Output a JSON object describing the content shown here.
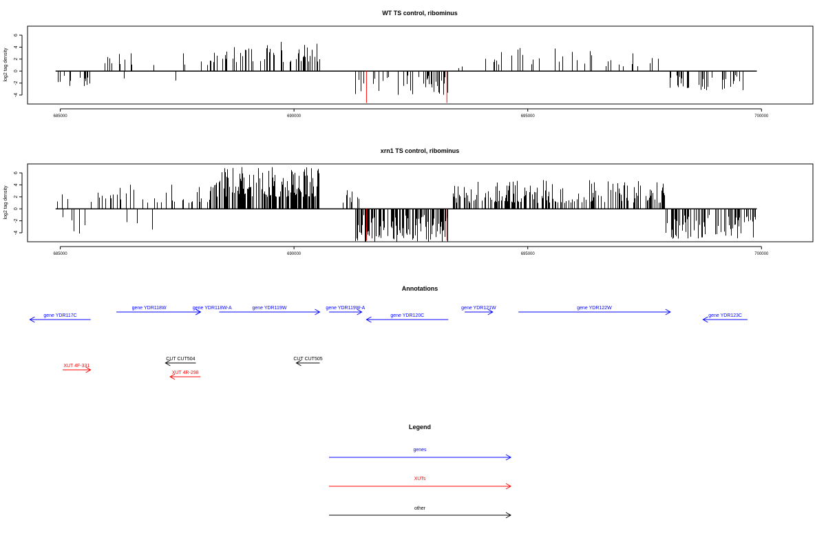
{
  "panels": [
    {
      "title": "WT TS control, ribominus",
      "ylabel": "log2 tag density",
      "yticks": [
        -4,
        -2,
        0,
        2,
        4,
        6
      ],
      "ylim": [
        -5.5,
        7.5
      ],
      "xlim": [
        684300,
        701100
      ],
      "xticks": [
        685000,
        690000,
        695000,
        700000
      ],
      "xticklabels": [
        "685000",
        "690000",
        "695000",
        "700000"
      ],
      "baseline": [
        684900,
        699900
      ],
      "red_marks": [
        {
          "x": 691550,
          "y": -5.3
        },
        {
          "x": 693270,
          "y": -5.3
        }
      ],
      "segments": [
        {
          "start": 684930,
          "end": 685650,
          "density": 0.25,
          "lo": 0,
          "hi": 0,
          "nlo": -2.5,
          "nhi": -0.5,
          "pneg": 1
        },
        {
          "start": 685650,
          "end": 688200,
          "density": 0.09,
          "lo": 1,
          "hi": 3,
          "nlo": -2,
          "nhi": -1,
          "pneg": 0.05
        },
        {
          "start": 688200,
          "end": 690550,
          "density": 0.32,
          "lo": 1.5,
          "hi": 5,
          "nlo": 0,
          "nhi": 0,
          "pneg": 0
        },
        {
          "start": 691100,
          "end": 691250,
          "density": 0.05,
          "lo": 0.5,
          "hi": 1.5,
          "nlo": 0,
          "nhi": 0,
          "pneg": 0
        },
        {
          "start": 691300,
          "end": 693300,
          "density": 0.22,
          "lo": 0,
          "hi": 0,
          "nlo": -4,
          "nhi": -0.5,
          "pneg": 1
        },
        {
          "start": 693500,
          "end": 697900,
          "density": 0.1,
          "lo": 0.5,
          "hi": 4,
          "nlo": 0,
          "nhi": 0,
          "pneg": 0
        },
        {
          "start": 697900,
          "end": 699700,
          "density": 0.22,
          "lo": 0,
          "hi": 0,
          "nlo": -3.2,
          "nhi": -0.5,
          "pneg": 1
        }
      ]
    },
    {
      "title": "xrn1 TS control, ribominus",
      "ylabel": "log2 tag density",
      "yticks": [
        -4,
        -2,
        0,
        2,
        4,
        6
      ],
      "ylim": [
        -5.5,
        7.5
      ],
      "xlim": [
        684300,
        701100
      ],
      "xticks": [
        685000,
        690000,
        695000,
        700000
      ],
      "xticklabels": [
        "685000",
        "690000",
        "695000",
        "700000"
      ],
      "baseline": [
        684900,
        699900
      ],
      "red_marks": [
        {
          "x": 691550,
          "y": -5.3
        },
        {
          "x": 693270,
          "y": -5.3
        }
      ],
      "segments": [
        {
          "start": 684930,
          "end": 685650,
          "density": 0.3,
          "lo": 1,
          "hi": 2.5,
          "nlo": -4.5,
          "nhi": -0.5,
          "pneg": 0.6
        },
        {
          "start": 685650,
          "end": 688200,
          "density": 0.28,
          "lo": 1,
          "hi": 4.2,
          "nlo": -3.5,
          "nhi": -1,
          "pneg": 0.06
        },
        {
          "start": 688200,
          "end": 690550,
          "density": 0.7,
          "lo": 2,
          "hi": 7,
          "nlo": 0,
          "nhi": 0,
          "pneg": 0
        },
        {
          "start": 691000,
          "end": 691400,
          "density": 0.2,
          "lo": 1,
          "hi": 3.5,
          "nlo": 0,
          "nhi": 0,
          "pneg": 0
        },
        {
          "start": 691300,
          "end": 693300,
          "density": 0.6,
          "lo": 0,
          "hi": 0,
          "nlo": -5.5,
          "nhi": -1,
          "pneg": 1
        },
        {
          "start": 693350,
          "end": 697950,
          "density": 0.45,
          "lo": 1,
          "hi": 4.8,
          "nlo": 0,
          "nhi": 0,
          "pneg": 0
        },
        {
          "start": 697950,
          "end": 699900,
          "density": 0.5,
          "lo": 0,
          "hi": 0,
          "nlo": -5,
          "nhi": -1,
          "pneg": 0.85
        }
      ]
    }
  ],
  "annotations": {
    "title": "Annotations",
    "xlim": [
      684300,
      701100
    ],
    "features": [
      {
        "label": "gene YDR117C",
        "start": 684350,
        "end": 685650,
        "strand": "-",
        "row": 2,
        "color": "#0000ff"
      },
      {
        "label": "gene YDR118W",
        "start": 686200,
        "end": 688000,
        "strand": "+",
        "row": 1,
        "color": "#0000ff"
      },
      {
        "label": "gene YDR118W-A",
        "start": 687900,
        "end": 688000,
        "strand": "+",
        "row": 1,
        "color": "#0000ff"
      },
      {
        "label": "gene YDR119W",
        "start": 688400,
        "end": 690550,
        "strand": "+",
        "row": 1,
        "color": "#0000ff"
      },
      {
        "label": "gene YDR119W-A",
        "start": 690750,
        "end": 691450,
        "strand": "+",
        "row": 1,
        "color": "#0000ff"
      },
      {
        "label": "gene YDR120C",
        "start": 691550,
        "end": 693300,
        "strand": "-",
        "row": 2,
        "color": "#0000ff"
      },
      {
        "label": "gene YDR121W",
        "start": 693650,
        "end": 694250,
        "strand": "+",
        "row": 1,
        "color": "#0000ff"
      },
      {
        "label": "gene YDR122W",
        "start": 694800,
        "end": 698050,
        "strand": "+",
        "row": 1,
        "color": "#0000ff"
      },
      {
        "label": "gene YDR123C",
        "start": 698750,
        "end": 699700,
        "strand": "-",
        "row": 2,
        "color": "#0000ff"
      },
      {
        "label": "CUT CUT504",
        "start": 687250,
        "end": 687900,
        "strand": "-",
        "row": 3,
        "color": "#000000"
      },
      {
        "label": "CUT CUT505",
        "start": 690050,
        "end": 690550,
        "strand": "-",
        "row": 3,
        "color": "#000000"
      },
      {
        "label": "XUT 4F-331",
        "start": 685050,
        "end": 685650,
        "strand": "+",
        "row": 4,
        "color": "#ff0000"
      },
      {
        "label": "XUT 4R-298",
        "start": 687350,
        "end": 688000,
        "strand": "-",
        "row": 5,
        "color": "#ff0000"
      }
    ]
  },
  "legend": {
    "title": "Legend",
    "items": [
      {
        "label": "genes",
        "color": "#0000ff"
      },
      {
        "label": "XUTs",
        "color": "#ff0000"
      },
      {
        "label": "other",
        "color": "#000000"
      }
    ]
  }
}
